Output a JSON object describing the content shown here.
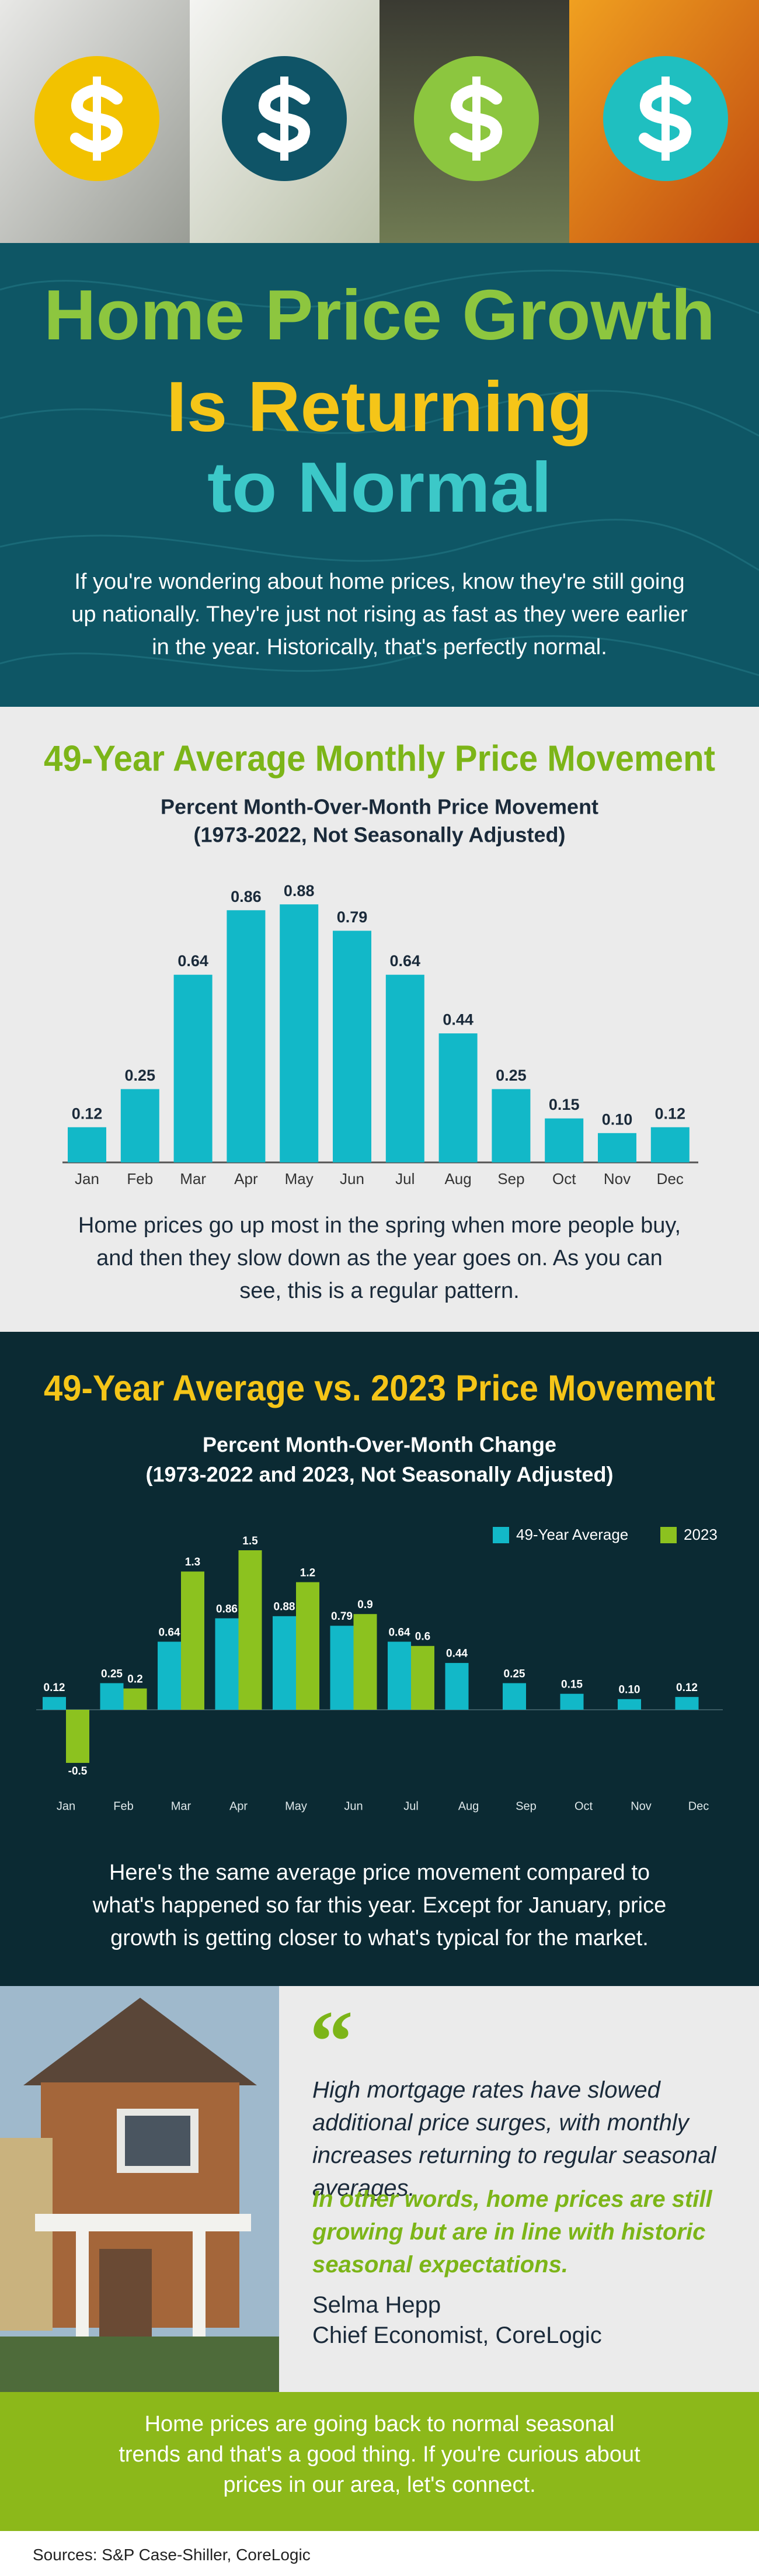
{
  "title": {
    "line1": "Home Price Growth",
    "line2": "Is Returning",
    "line3": "to Normal"
  },
  "intro": "If you're wondering about home prices, know they're still going up nationally. They're just not rising as fast as they were earlier in the year. Historically, that's perfectly normal.",
  "chart_data": [
    {
      "type": "bar",
      "title": "49-Year Average Monthly Price Movement",
      "subtitle": [
        "Percent Month-Over-Month Price Movement",
        "(1973-2022, Not Seasonally Adjusted)"
      ],
      "categories": [
        "Jan",
        "Feb",
        "Mar",
        "Apr",
        "May",
        "Jun",
        "Jul",
        "Aug",
        "Sep",
        "Oct",
        "Nov",
        "Dec"
      ],
      "values": [
        0.12,
        0.25,
        0.64,
        0.86,
        0.88,
        0.79,
        0.64,
        0.44,
        0.25,
        0.15,
        0.1,
        0.12
      ],
      "value_labels": [
        "0.12",
        "0.25",
        "0.64",
        "0.86",
        "0.88",
        "0.79",
        "0.64",
        "0.44",
        "0.25",
        "0.15",
        "0.10",
        "0.12"
      ],
      "color": "#12b8c8"
    },
    {
      "type": "bar",
      "title": "49-Year Average vs. 2023 Price Movement",
      "subtitle": [
        "Percent Month-Over-Month Change",
        "(1973-2022 and 2023, Not Seasonally Adjusted)"
      ],
      "categories": [
        "Jan",
        "Feb",
        "Mar",
        "Apr",
        "May",
        "Jun",
        "Jul",
        "Aug",
        "Sep",
        "Oct",
        "Nov",
        "Dec"
      ],
      "series": [
        {
          "name": "49-Year Average",
          "color": "#12b8c8",
          "values": [
            0.12,
            0.25,
            0.64,
            0.86,
            0.88,
            0.79,
            0.64,
            0.44,
            0.25,
            0.15,
            0.1,
            0.12
          ],
          "value_labels": [
            "0.12",
            "0.25",
            "0.64",
            "0.86",
            "0.88",
            "0.79",
            "0.64",
            "0.44",
            "0.25",
            "0.15",
            "0.10",
            "0.12"
          ]
        },
        {
          "name": "2023",
          "color": "#8cc21f",
          "values": [
            -0.5,
            0.2,
            1.3,
            1.5,
            1.2,
            0.9,
            0.6,
            null,
            null,
            null,
            null,
            null
          ]
        }
      ],
      "legend": "top-right"
    }
  ],
  "captions": [
    "Home prices go up most in the spring when more people buy, and then they slow down as the year goes on. As you can see, this is a regular pattern.",
    "Here's the same average price movement compared to what's happened so far this year. Except for January, price growth is getting closer to what's typical for the market."
  ],
  "quote": {
    "mark": "“",
    "text": "High mortgage rates have slowed additional price surges, with monthly increases returning to regular seasonal averages.",
    "emphasis": "In other words, home prices are still growing but are in line with historic seasonal expectations.",
    "name": "Selma Hepp",
    "role": "Chief Economist, CoreLogic"
  },
  "footer": "Home prices are going back to normal seasonal trends and that's a good thing. If you're curious about prices in our area, let's connect.",
  "sources": "Sources: S&P Case-Shiller, CoreLogic"
}
